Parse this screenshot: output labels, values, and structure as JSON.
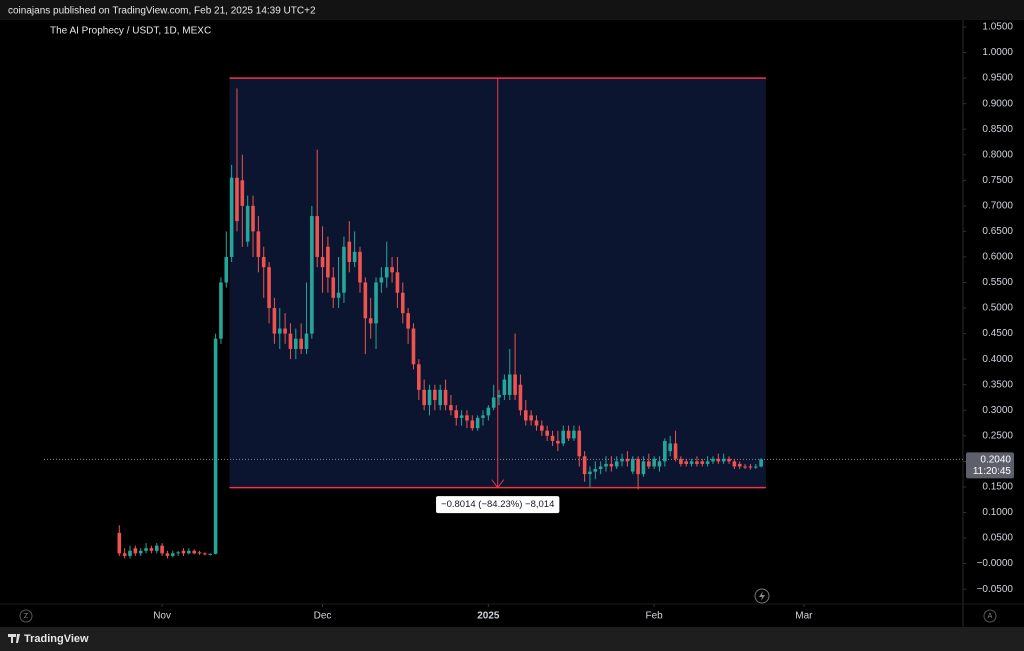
{
  "header": {
    "publish_line": "coinajans published on TradingView.com, Feb 21, 2025 14:39 UTC+2",
    "brand": "TradingView"
  },
  "ui": {
    "left_button": "Z",
    "right_button": "A"
  },
  "chart_data": {
    "type": "candlestick",
    "title": "The AI Prophecy / USDT, 1D, MEXC",
    "up_color": "#26a69a",
    "down_color": "#ef5350",
    "open": [
      0.06,
      0.02,
      0.015,
      0.03,
      0.02,
      0.025,
      0.03,
      0.025,
      0.035,
      0.02,
      0.015,
      0.02,
      0.025,
      0.02,
      0.025,
      0.022,
      0.02,
      0.018,
      0.019,
      0.44,
      0.55,
      0.6,
      0.755,
      0.75,
      0.63,
      0.7,
      0.65,
      0.6,
      0.58,
      0.5,
      0.45,
      0.46,
      0.45,
      0.42,
      0.44,
      0.42,
      0.45,
      0.68,
      0.6,
      0.62,
      0.56,
      0.52,
      0.53,
      0.63,
      0.59,
      0.61,
      0.55,
      0.48,
      0.47,
      0.55,
      0.56,
      0.58,
      0.57,
      0.53,
      0.49,
      0.46,
      0.39,
      0.34,
      0.31,
      0.34,
      0.31,
      0.34,
      0.31,
      0.3,
      0.285,
      0.29,
      0.28,
      0.265,
      0.285,
      0.29,
      0.305,
      0.325,
      0.33,
      0.33,
      0.37,
      0.35,
      0.3,
      0.29,
      0.28,
      0.27,
      0.26,
      0.25,
      0.24,
      0.235,
      0.26,
      0.245,
      0.26,
      0.21,
      0.175,
      0.18,
      0.185,
      0.19,
      0.195,
      0.19,
      0.2,
      0.205,
      0.18,
      0.205,
      0.175,
      0.2,
      0.19,
      0.19,
      0.2,
      0.22,
      0.235,
      0.205,
      0.2,
      0.195,
      0.2,
      0.2,
      0.195,
      0.2,
      0.205,
      0.2,
      0.205,
      0.2,
      0.195,
      0.19,
      0.19,
      0.188,
      0.19
    ],
    "high": [
      0.075,
      0.03,
      0.035,
      0.035,
      0.03,
      0.04,
      0.035,
      0.04,
      0.04,
      0.025,
      0.025,
      0.025,
      0.03,
      0.03,
      0.028,
      0.025,
      0.022,
      0.02,
      0.45,
      0.56,
      0.65,
      0.78,
      0.93,
      0.8,
      0.72,
      0.72,
      0.68,
      0.62,
      0.59,
      0.52,
      0.5,
      0.49,
      0.47,
      0.46,
      0.47,
      0.55,
      0.7,
      0.81,
      0.66,
      0.64,
      0.58,
      0.6,
      0.64,
      0.67,
      0.65,
      0.62,
      0.56,
      0.52,
      0.56,
      0.58,
      0.63,
      0.6,
      0.6,
      0.55,
      0.5,
      0.47,
      0.4,
      0.36,
      0.35,
      0.35,
      0.35,
      0.36,
      0.33,
      0.31,
      0.3,
      0.3,
      0.29,
      0.29,
      0.3,
      0.31,
      0.35,
      0.34,
      0.37,
      0.42,
      0.45,
      0.37,
      0.32,
      0.3,
      0.29,
      0.28,
      0.27,
      0.26,
      0.26,
      0.27,
      0.27,
      0.27,
      0.27,
      0.22,
      0.19,
      0.2,
      0.2,
      0.21,
      0.21,
      0.21,
      0.215,
      0.22,
      0.21,
      0.21,
      0.21,
      0.215,
      0.21,
      0.21,
      0.245,
      0.25,
      0.26,
      0.21,
      0.205,
      0.205,
      0.21,
      0.205,
      0.21,
      0.21,
      0.215,
      0.215,
      0.21,
      0.205,
      0.2,
      0.195,
      0.195,
      0.195,
      0.206
    ],
    "low": [
      0.015,
      0.01,
      0.01,
      0.015,
      0.015,
      0.02,
      0.02,
      0.02,
      0.015,
      0.01,
      0.012,
      0.015,
      0.015,
      0.018,
      0.018,
      0.017,
      0.016,
      0.016,
      0.018,
      0.43,
      0.54,
      0.59,
      0.65,
      0.62,
      0.62,
      0.6,
      0.57,
      0.52,
      0.47,
      0.43,
      0.42,
      0.43,
      0.4,
      0.4,
      0.41,
      0.41,
      0.44,
      0.58,
      0.53,
      0.53,
      0.5,
      0.5,
      0.51,
      0.57,
      0.58,
      0.53,
      0.41,
      0.44,
      0.42,
      0.53,
      0.54,
      0.55,
      0.5,
      0.47,
      0.43,
      0.38,
      0.32,
      0.3,
      0.29,
      0.3,
      0.3,
      0.3,
      0.29,
      0.27,
      0.27,
      0.265,
      0.26,
      0.26,
      0.27,
      0.28,
      0.3,
      0.31,
      0.32,
      0.32,
      0.32,
      0.29,
      0.27,
      0.27,
      0.26,
      0.25,
      0.24,
      0.23,
      0.22,
      0.23,
      0.24,
      0.24,
      0.19,
      0.16,
      0.15,
      0.165,
      0.175,
      0.18,
      0.18,
      0.185,
      0.19,
      0.19,
      0.175,
      0.145,
      0.17,
      0.185,
      0.185,
      0.18,
      0.19,
      0.21,
      0.2,
      0.19,
      0.19,
      0.19,
      0.19,
      0.19,
      0.19,
      0.195,
      0.195,
      0.195,
      0.195,
      0.185,
      0.185,
      0.185,
      0.184,
      0.185,
      0.188
    ],
    "close": [
      0.02,
      0.015,
      0.025,
      0.02,
      0.025,
      0.03,
      0.025,
      0.035,
      0.02,
      0.015,
      0.02,
      0.022,
      0.02,
      0.025,
      0.02,
      0.02,
      0.018,
      0.019,
      0.44,
      0.55,
      0.6,
      0.755,
      0.67,
      0.7,
      0.7,
      0.65,
      0.6,
      0.58,
      0.5,
      0.45,
      0.46,
      0.45,
      0.42,
      0.44,
      0.42,
      0.45,
      0.68,
      0.6,
      0.58,
      0.56,
      0.52,
      0.53,
      0.62,
      0.59,
      0.61,
      0.55,
      0.48,
      0.47,
      0.55,
      0.56,
      0.58,
      0.57,
      0.53,
      0.49,
      0.46,
      0.39,
      0.34,
      0.31,
      0.34,
      0.32,
      0.34,
      0.31,
      0.3,
      0.285,
      0.29,
      0.28,
      0.265,
      0.285,
      0.29,
      0.305,
      0.325,
      0.33,
      0.36,
      0.37,
      0.33,
      0.3,
      0.28,
      0.28,
      0.27,
      0.26,
      0.25,
      0.24,
      0.235,
      0.26,
      0.245,
      0.26,
      0.21,
      0.175,
      0.18,
      0.185,
      0.19,
      0.195,
      0.19,
      0.2,
      0.205,
      0.2,
      0.205,
      0.175,
      0.2,
      0.19,
      0.205,
      0.2,
      0.24,
      0.235,
      0.205,
      0.195,
      0.195,
      0.2,
      0.195,
      0.195,
      0.2,
      0.205,
      0.2,
      0.205,
      0.2,
      0.19,
      0.19,
      0.188,
      0.188,
      0.19,
      0.204
    ],
    "xlim": [
      -21,
      157
    ],
    "xticks": [
      {
        "value": 8,
        "label": "Nov"
      },
      {
        "value": 38,
        "label": "Dec"
      },
      {
        "value": 69,
        "label": "2025"
      },
      {
        "value": 100,
        "label": "Feb"
      },
      {
        "value": 128,
        "label": "Mar"
      }
    ],
    "ylim": [
      -0.0713,
      1.0637
    ],
    "yticks": [
      {
        "value": 1.05,
        "label": "1.0500"
      },
      {
        "value": 1.0,
        "label": "1.0000"
      },
      {
        "value": 0.95,
        "label": "0.9500"
      },
      {
        "value": 0.9,
        "label": "0.9000"
      },
      {
        "value": 0.85,
        "label": "0.8500"
      },
      {
        "value": 0.8,
        "label": "0.8000"
      },
      {
        "value": 0.75,
        "label": "0.7500"
      },
      {
        "value": 0.7,
        "label": "0.7000"
      },
      {
        "value": 0.65,
        "label": "0.6500"
      },
      {
        "value": 0.6,
        "label": "0.6000"
      },
      {
        "value": 0.55,
        "label": "0.5500"
      },
      {
        "value": 0.5,
        "label": "0.5000"
      },
      {
        "value": 0.45,
        "label": "0.4500"
      },
      {
        "value": 0.4,
        "label": "0.4000"
      },
      {
        "value": 0.35,
        "label": "0.3500"
      },
      {
        "value": 0.3,
        "label": "0.3000"
      },
      {
        "value": 0.25,
        "label": "0.2500"
      },
      {
        "value": 0.2,
        "label": "0.2000"
      },
      {
        "value": 0.15,
        "label": "0.1500"
      },
      {
        "value": 0.1,
        "label": "0.1000"
      },
      {
        "value": 0.05,
        "label": "0.0500"
      },
      {
        "value": 0,
        "label": "−0.0000"
      },
      {
        "value": -0.05,
        "label": "−0.0500"
      }
    ],
    "last_price": {
      "value": 0.204,
      "label": "0.2040",
      "countdown": "11:20:45"
    },
    "measure": {
      "from_price": 0.95,
      "to_price": 0.1486,
      "start": 20.6,
      "end": 120.9,
      "label": "−0.8014 (−84.23%) −8,014"
    }
  }
}
